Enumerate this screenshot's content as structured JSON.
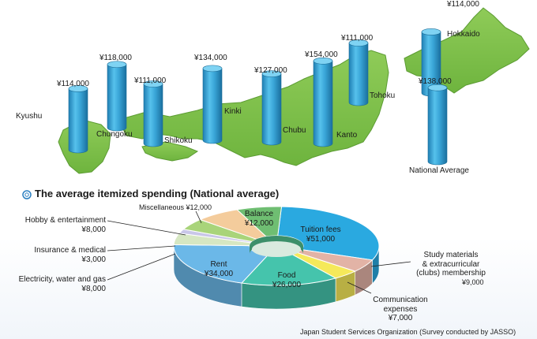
{
  "chart_data": [
    {
      "type": "bar",
      "categories": [
        "Kyushu",
        "Chungoku",
        "Shikoku",
        "Kinki",
        "Chubu",
        "Kanto",
        "Tohoku",
        "Hokkaido",
        "National Average"
      ],
      "values": [
        114000,
        118000,
        111000,
        134000,
        127000,
        154000,
        111000,
        114000,
        138000
      ],
      "value_labels": [
        "¥114,000",
        "¥118,000",
        "¥111,000",
        "¥134,000",
        "¥127,000",
        "¥154,000",
        "¥111,000",
        "¥114,000",
        "¥138,000"
      ],
      "style": "3d cylinders over map of Japan",
      "colors": {
        "bar": "#3aa6d8",
        "map": "#7cbf4a"
      }
    },
    {
      "type": "pie",
      "title": "The average itemized spending  (National average)",
      "style": "3d exploded pie (donut hole)",
      "slices": [
        {
          "label": "Tuition fees",
          "value": 51000,
          "amount": "¥51,000",
          "color": "#2aa9e0"
        },
        {
          "label": "Study materials & extracurricular (clubs) membership",
          "value": 9000,
          "amount": "¥9,000",
          "color": "#e2b3a6"
        },
        {
          "label": "Communication expenses",
          "value": 7000,
          "amount": "¥7,000",
          "color": "#f5e95a"
        },
        {
          "label": "Food",
          "value": 26000,
          "amount": "¥26,000",
          "color": "#45c4ac"
        },
        {
          "label": "Rent",
          "value": 34000,
          "amount": "¥34,000",
          "color": "#6bb8e8"
        },
        {
          "label": "Electricity, water and gas",
          "value": 8000,
          "amount": "¥8,000",
          "color": "#d6e7c2"
        },
        {
          "label": "Insurance & medical",
          "value": 3000,
          "amount": "¥3,000",
          "color": "#c9c7e8"
        },
        {
          "label": "Hobby & entertainment",
          "value": 8000,
          "amount": "¥8,000",
          "color": "#a9d47a"
        },
        {
          "label": "Miscellaneous",
          "value": 12000,
          "amount": "¥12,000",
          "color": "#f4cc9c"
        },
        {
          "label": "Balance",
          "value": 12000,
          "amount": "¥12,000",
          "color": "#6fbe72"
        }
      ]
    }
  ],
  "text": {
    "pie_title": "The average itemized spending  (National average)",
    "footer": "Japan Student Services Organization  (Survey conducted by JASSO)",
    "tuition_label": "Tuition fees",
    "tuition_amount": "¥51,000",
    "study_label_1": "Study materials",
    "study_label_2": "& extracurricular",
    "study_label_3": "(clubs) membership",
    "study_amount": "¥9,000",
    "comm_label_1": "Communication",
    "comm_label_2": "expenses",
    "comm_amount": "¥7,000",
    "food_label": "Food",
    "food_amount": "¥26,000",
    "rent_label": "Rent",
    "rent_amount": "¥34,000",
    "elec_label": "Electricity, water and gas",
    "elec_amount": "¥8,000",
    "ins_label": "Insurance & medical",
    "ins_amount": "¥3,000",
    "hobby_label": "Hobby & entertainment",
    "hobby_amount": "¥8,000",
    "misc_label": "Miscellaneous ¥12,000",
    "balance_label": "Balance",
    "balance_amount": "¥12,000"
  }
}
